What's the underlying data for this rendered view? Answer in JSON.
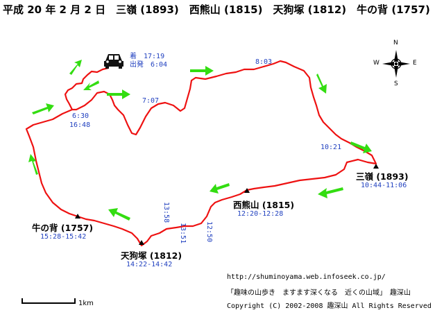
{
  "title": "平成 20 年 2 月 2 日　三嶺 (1893)　西熊山 (1815)　天狗塚 (1812)　牛の背 (1757)",
  "car": {
    "arrive_label": "着　17:19",
    "depart_label": "出発　6:04"
  },
  "peaks": [
    {
      "name": "三嶺 (1893)",
      "time": "10:44-11:06"
    },
    {
      "name": "西熊山 (1815)",
      "time": "12:20-12:28"
    },
    {
      "name": "天狗塚 (1812)",
      "time": "14:22-14:42"
    },
    {
      "name": "牛の背 (1757)",
      "time": "15:28-15:42"
    }
  ],
  "waypoint_times": {
    "t0630": "6:30",
    "t1648": "16:48",
    "t0707": "7:07",
    "t0803": "8:03",
    "t1021": "10:21",
    "t1250": "12:50",
    "t1351": "13:51",
    "t1358": "13:58"
  },
  "compass": {
    "n": "N",
    "s": "S",
    "e": "E",
    "w": "W"
  },
  "scale_label": "1km",
  "credits": {
    "url": "http://shuminoyama.web.infoseek.co.jp/",
    "site": "「趣味の山歩き　ますます深くなる　近くの山域」　趣深山",
    "copyright": "Copyright (C) 2002-2008 趣深山 All Rights Reserved"
  },
  "colors": {
    "route": "#ee1111",
    "arrow": "#33dd11",
    "time": "#1f3fbf"
  }
}
